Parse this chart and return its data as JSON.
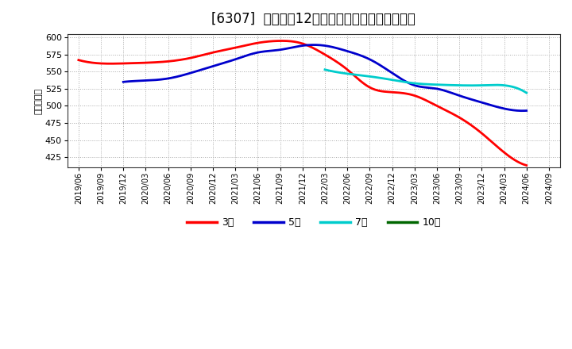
{
  "title": "[6307]  経常利益12か月移動合計の平均値の推移",
  "ylabel": "（百万円）",
  "bg_color": "#ffffff",
  "plot_bg_color": "#ffffff",
  "outer_bg_color": "#ffffff",
  "ylim": [
    410,
    605
  ],
  "yticks": [
    425,
    450,
    475,
    500,
    525,
    550,
    575,
    600
  ],
  "x_labels": [
    "2019/06",
    "2019/09",
    "2019/12",
    "2020/03",
    "2020/06",
    "2020/09",
    "2020/12",
    "2021/03",
    "2021/06",
    "2021/09",
    "2021/12",
    "2022/03",
    "2022/06",
    "2022/09",
    "2022/12",
    "2023/03",
    "2023/06",
    "2023/09",
    "2023/12",
    "2024/03",
    "2024/06",
    "2024/09"
  ],
  "series": {
    "3年": {
      "color": "#ff0000",
      "data_x": [
        0,
        1,
        2,
        3,
        4,
        5,
        6,
        7,
        8,
        9,
        10,
        11,
        12,
        13,
        14,
        15,
        16,
        17,
        18,
        19,
        20
      ],
      "data_y": [
        567,
        562,
        562,
        563,
        565,
        570,
        578,
        585,
        592,
        595,
        591,
        575,
        553,
        527,
        520,
        515,
        500,
        483,
        460,
        432,
        413
      ]
    },
    "5年": {
      "color": "#0000cc",
      "data_x": [
        2,
        3,
        4,
        5,
        6,
        7,
        8,
        9,
        10,
        11,
        12,
        13,
        14,
        15,
        16,
        17,
        18,
        19,
        20
      ],
      "data_y": [
        535,
        537,
        540,
        548,
        558,
        568,
        578,
        582,
        588,
        588,
        580,
        568,
        548,
        530,
        525,
        515,
        505,
        496,
        493
      ]
    },
    "7年": {
      "color": "#00cccc",
      "data_x": [
        11,
        12,
        13,
        14,
        15,
        16,
        17,
        18,
        19,
        20
      ],
      "data_y": [
        553,
        547,
        543,
        538,
        533,
        531,
        530,
        530,
        530,
        519
      ]
    },
    "10年": {
      "color": "#006600",
      "data_x": [],
      "data_y": []
    }
  },
  "legend_labels": [
    "3年",
    "5年",
    "7年",
    "10年"
  ],
  "legend_colors": [
    "#ff0000",
    "#0000cc",
    "#00cccc",
    "#006600"
  ],
  "grid_color": "#aaaaaa",
  "grid_style": ":",
  "title_fontsize": 12,
  "axis_fontsize": 8,
  "legend_fontsize": 9
}
